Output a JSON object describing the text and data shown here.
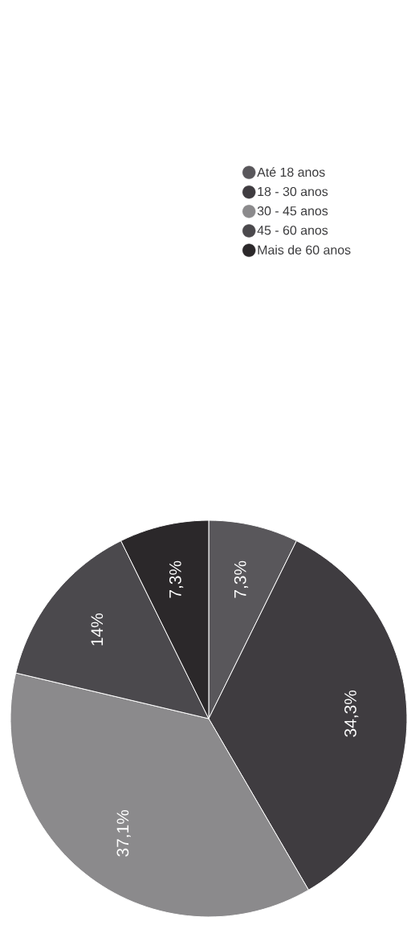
{
  "chart_data": {
    "type": "pie",
    "categories": [
      "Até 18 anos",
      "18 - 30 anos",
      "30 - 45 anos",
      "45 - 60 anos",
      "Mais de 60 anos"
    ],
    "values": [
      7.3,
      34.3,
      37.1,
      14,
      7.3
    ],
    "value_labels": [
      "7,3%",
      "34,3%",
      "37,1%",
      "14%",
      "7,3%"
    ],
    "colors": [
      "#59575b",
      "#3f3c40",
      "#8b8a8c",
      "#4b494d",
      "#2b282a"
    ],
    "legend": "right"
  }
}
